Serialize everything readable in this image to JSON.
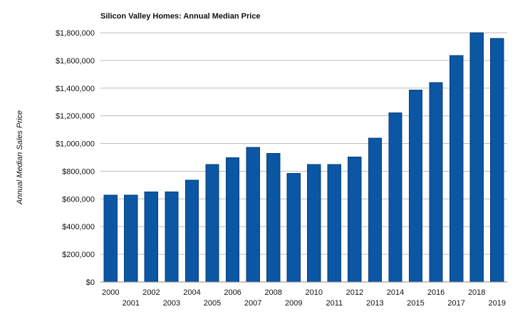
{
  "chart_data": {
    "type": "bar",
    "title": "Silicon Valley Homes: Annual Median Price",
    "xlabel": "",
    "ylabel": "Annual Median Sales Price",
    "categories": [
      "2000",
      "2001",
      "2002",
      "2003",
      "2004",
      "2005",
      "2006",
      "2007",
      "2008",
      "2009",
      "2010",
      "2011",
      "2012",
      "2013",
      "2014",
      "2015",
      "2016",
      "2017",
      "2018",
      "2019"
    ],
    "values": [
      628000,
      628000,
      650000,
      650000,
      735000,
      848000,
      897000,
      973000,
      928000,
      785000,
      848000,
      848000,
      903000,
      1040000,
      1222000,
      1385000,
      1440000,
      1636000,
      1800000,
      1758000
    ],
    "ylim": [
      0,
      1800000
    ],
    "yticks": [
      0,
      200000,
      400000,
      600000,
      800000,
      1000000,
      1200000,
      1400000,
      1600000,
      1800000
    ],
    "ytick_labels": [
      "$0",
      "$200,000",
      "$400,000",
      "$600,000",
      "$800,000",
      "$1,000,000",
      "$1,200,000",
      "$1,400,000",
      "$1,600,000",
      "$1,800,000"
    ],
    "grid": true,
    "bar_color": "#0b57a4",
    "bar_edge_color": "#083f78"
  }
}
